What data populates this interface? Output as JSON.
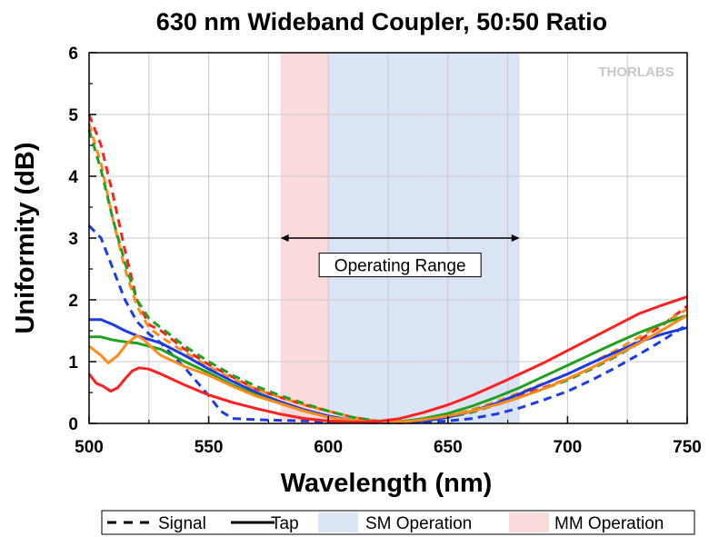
{
  "chart_data": {
    "type": "line",
    "title": "630 nm Wideband Coupler, 50:50 Ratio",
    "xlabel": "Wavelength (nm)",
    "ylabel": "Uniformity (dB)",
    "xlim": [
      500,
      750
    ],
    "ylim": [
      0,
      6
    ],
    "xticks": [
      500,
      550,
      600,
      650,
      700,
      750
    ],
    "yticks": [
      0,
      1,
      2,
      3,
      4,
      5,
      6
    ],
    "grid": true,
    "logo": "THORLABS",
    "regions": [
      {
        "name": "MM Operation",
        "x_start": 580,
        "x_end": 600,
        "color": "#fadada"
      },
      {
        "name": "SM Operation",
        "x_start": 600,
        "x_end": 680,
        "color": "#dbe4f5"
      }
    ],
    "annotation": {
      "text": "Operating Range",
      "x_start": 580,
      "x_end": 680,
      "arrow_y": 3.0,
      "label_y": 2.55
    },
    "legend": {
      "placement": "bottom",
      "items": [
        {
          "label": "Signal",
          "kind": "dashed"
        },
        {
          "label": "Tap",
          "kind": "solid"
        },
        {
          "label": "SM Operation",
          "kind": "patch",
          "color": "#dbe4f5"
        },
        {
          "label": "MM Operation",
          "kind": "patch",
          "color": "#fadada"
        }
      ]
    },
    "series": [
      {
        "color": "#ff2020",
        "style": "dashed",
        "x": [
          500,
          505,
          510,
          515,
          520,
          525,
          530,
          540,
          550,
          560,
          570,
          580,
          590,
          600,
          610,
          620,
          630,
          640,
          650,
          660,
          670,
          680,
          690,
          700,
          710,
          720,
          730,
          740,
          750
        ],
        "y": [
          5.0,
          4.5,
          3.7,
          2.8,
          2.0,
          1.6,
          1.5,
          1.2,
          0.95,
          0.75,
          0.55,
          0.42,
          0.3,
          0.2,
          0.1,
          0.04,
          0.02,
          0.04,
          0.1,
          0.2,
          0.32,
          0.45,
          0.58,
          0.72,
          0.9,
          1.1,
          1.35,
          1.6,
          1.9
        ]
      },
      {
        "color": "#ff8c1a",
        "style": "dashed",
        "x": [
          500,
          505,
          510,
          515,
          520,
          525,
          530,
          540,
          550,
          560,
          570,
          580,
          590,
          600,
          610,
          620,
          630,
          640,
          650,
          660,
          670,
          680,
          690,
          700,
          710,
          720,
          730,
          740,
          750
        ],
        "y": [
          4.85,
          4.2,
          3.3,
          2.5,
          1.9,
          1.55,
          1.4,
          1.15,
          0.92,
          0.72,
          0.55,
          0.42,
          0.3,
          0.2,
          0.1,
          0.04,
          0.02,
          0.05,
          0.12,
          0.22,
          0.35,
          0.5,
          0.65,
          0.8,
          0.98,
          1.18,
          1.4,
          1.62,
          1.85
        ]
      },
      {
        "color": "#1fa01f",
        "style": "dashed",
        "x": [
          500,
          505,
          510,
          515,
          520,
          525,
          530,
          540,
          550,
          560,
          570,
          580,
          590,
          600,
          610,
          620,
          630,
          640,
          650,
          660,
          670,
          680,
          690,
          700,
          710,
          720,
          730,
          740,
          750
        ],
        "y": [
          4.75,
          4.1,
          3.3,
          2.6,
          2.0,
          1.7,
          1.55,
          1.25,
          1.0,
          0.78,
          0.6,
          0.45,
          0.32,
          0.2,
          0.1,
          0.04,
          0.02,
          0.04,
          0.1,
          0.18,
          0.3,
          0.42,
          0.56,
          0.7,
          0.88,
          1.08,
          1.3,
          1.52,
          1.75
        ]
      },
      {
        "color": "#1a3ce6",
        "style": "dashed",
        "x": [
          500,
          505,
          510,
          515,
          520,
          525,
          530,
          540,
          550,
          555,
          560,
          570,
          580,
          590,
          600,
          610,
          620,
          630,
          640,
          650,
          660,
          670,
          680,
          690,
          700,
          710,
          720,
          730,
          740,
          750
        ],
        "y": [
          3.2,
          3.0,
          2.5,
          2.0,
          1.65,
          1.45,
          1.3,
          0.9,
          0.45,
          0.2,
          0.08,
          0.06,
          0.05,
          0.04,
          0.03,
          0.02,
          0.01,
          0.01,
          0.02,
          0.04,
          0.08,
          0.15,
          0.25,
          0.38,
          0.52,
          0.7,
          0.9,
          1.12,
          1.35,
          1.6
        ]
      },
      {
        "color": "#1a3ce6",
        "style": "solid",
        "x": [
          500,
          505,
          510,
          515,
          520,
          530,
          540,
          550,
          560,
          570,
          580,
          590,
          600,
          610,
          620,
          630,
          640,
          650,
          660,
          670,
          680,
          690,
          700,
          710,
          720,
          730,
          740,
          750
        ],
        "y": [
          1.68,
          1.68,
          1.6,
          1.5,
          1.42,
          1.3,
          1.1,
          0.88,
          0.68,
          0.5,
          0.35,
          0.22,
          0.12,
          0.05,
          0.02,
          0.01,
          0.04,
          0.1,
          0.2,
          0.32,
          0.48,
          0.64,
          0.8,
          0.98,
          1.15,
          1.32,
          1.45,
          1.55
        ]
      },
      {
        "color": "#1fa01f",
        "style": "solid",
        "x": [
          500,
          505,
          510,
          515,
          520,
          530,
          540,
          550,
          560,
          570,
          580,
          590,
          600,
          610,
          620,
          630,
          640,
          650,
          660,
          670,
          680,
          690,
          700,
          710,
          720,
          730,
          740,
          750
        ],
        "y": [
          1.4,
          1.4,
          1.35,
          1.32,
          1.3,
          1.2,
          1.0,
          0.82,
          0.62,
          0.46,
          0.32,
          0.2,
          0.1,
          0.04,
          0.02,
          0.03,
          0.08,
          0.16,
          0.28,
          0.42,
          0.58,
          0.76,
          0.94,
          1.12,
          1.3,
          1.47,
          1.62,
          1.75
        ]
      },
      {
        "color": "#ff8c1a",
        "style": "solid",
        "x": [
          500,
          505,
          508,
          512,
          516,
          520,
          523,
          527,
          530,
          540,
          550,
          560,
          570,
          580,
          590,
          600,
          610,
          620,
          630,
          640,
          650,
          660,
          670,
          680,
          690,
          700,
          710,
          720,
          730,
          740,
          750
        ],
        "y": [
          1.25,
          1.1,
          0.98,
          1.1,
          1.3,
          1.42,
          1.35,
          1.2,
          1.1,
          0.92,
          0.78,
          0.6,
          0.44,
          0.32,
          0.2,
          0.1,
          0.05,
          0.02,
          0.02,
          0.06,
          0.12,
          0.2,
          0.3,
          0.42,
          0.56,
          0.72,
          0.9,
          1.1,
          1.3,
          1.52,
          1.75
        ]
      },
      {
        "color": "#ff2020",
        "style": "solid",
        "x": [
          500,
          503,
          506,
          509,
          512,
          515,
          518,
          521,
          525,
          530,
          540,
          550,
          560,
          570,
          580,
          590,
          600,
          610,
          620,
          630,
          640,
          650,
          660,
          670,
          680,
          690,
          700,
          710,
          720,
          730,
          740,
          750
        ],
        "y": [
          0.8,
          0.65,
          0.6,
          0.52,
          0.58,
          0.72,
          0.85,
          0.9,
          0.88,
          0.8,
          0.62,
          0.46,
          0.34,
          0.24,
          0.15,
          0.08,
          0.04,
          0.02,
          0.03,
          0.08,
          0.18,
          0.3,
          0.45,
          0.62,
          0.8,
          0.98,
          1.18,
          1.38,
          1.58,
          1.78,
          1.92,
          2.05
        ]
      }
    ]
  }
}
